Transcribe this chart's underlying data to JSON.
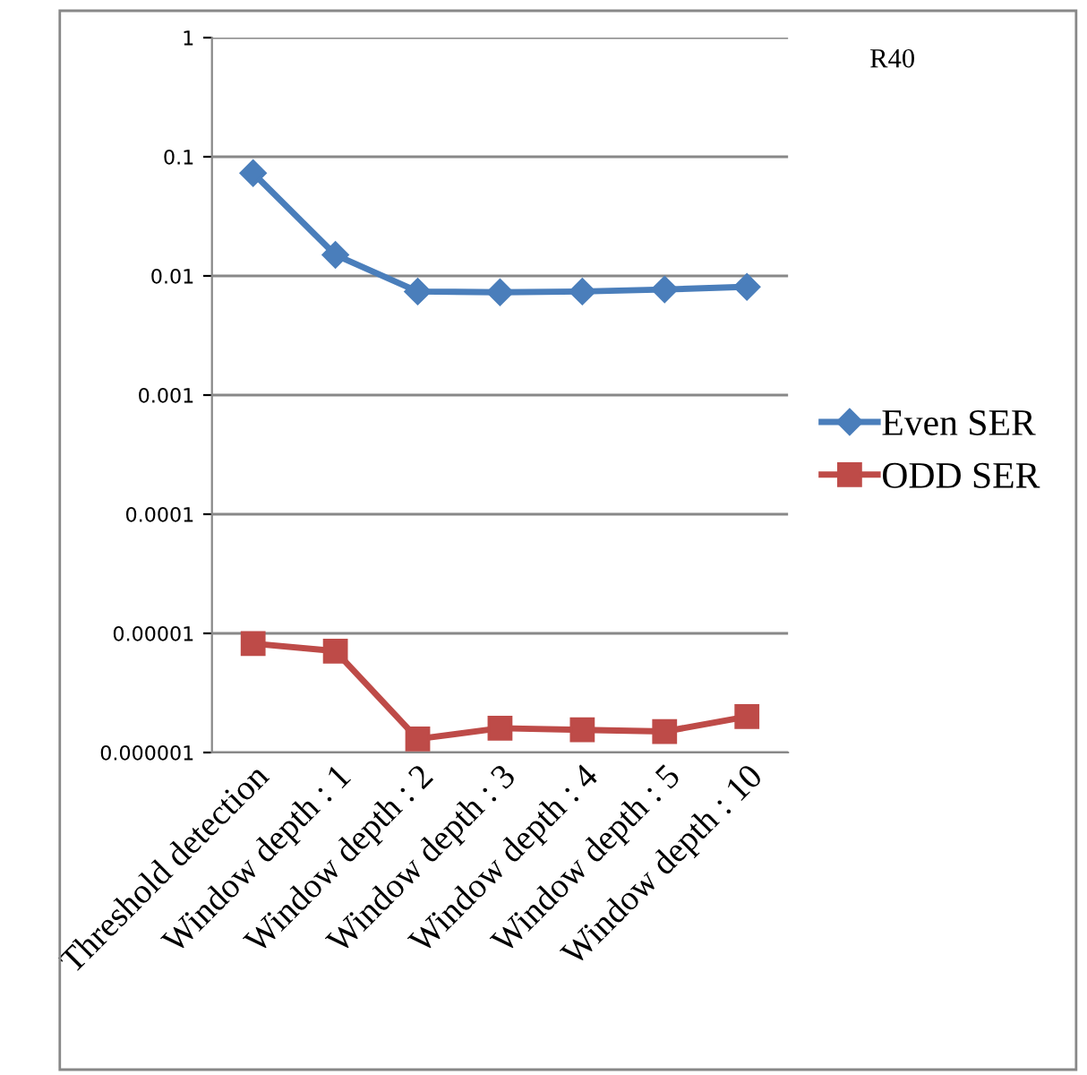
{
  "chart_data": {
    "type": "line",
    "annotations": [
      "R40"
    ],
    "categories": [
      "Threshold detection",
      "Window depth : 1",
      "Window depth : 2",
      "Window depth : 3",
      "Window depth : 4",
      "Window depth : 5",
      "Window depth : 10"
    ],
    "series": [
      {
        "name": "Even SER",
        "color": "#4a7ebb",
        "marker": "diamond",
        "values": [
          0.073,
          0.015,
          0.0074,
          0.0073,
          0.0074,
          0.0077,
          0.0081
        ]
      },
      {
        "name": "ODD SER",
        "color": "#be4b48",
        "marker": "square",
        "values": [
          8.2e-06,
          7.1e-06,
          1.3e-06,
          1.6e-06,
          1.55e-06,
          1.5e-06,
          2e-06
        ]
      }
    ],
    "log": true,
    "ylim": [
      1e-06,
      1
    ],
    "yticks": [
      {
        "value": 1e-06,
        "label": "0.000001"
      },
      {
        "value": 1e-05,
        "label": "0.00001"
      },
      {
        "value": 0.0001,
        "label": "0.0001"
      },
      {
        "value": 0.001,
        "label": "0.001"
      },
      {
        "value": 0.01,
        "label": "0.01"
      },
      {
        "value": 0.1,
        "label": "0.1"
      },
      {
        "value": 1,
        "label": "1"
      }
    ],
    "grid": "y",
    "legend": "right",
    "line_style": "solid"
  }
}
